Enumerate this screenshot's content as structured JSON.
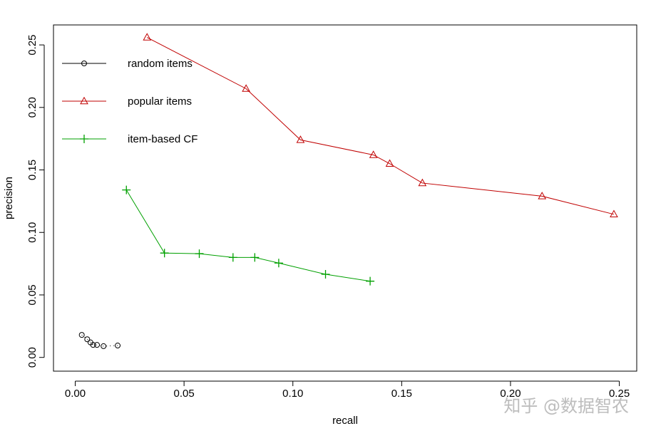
{
  "chart_data": {
    "type": "line",
    "title": "",
    "xlabel": "recall",
    "ylabel": "precision",
    "xlim": [
      -0.01,
      0.258
    ],
    "ylim": [
      -0.011,
      0.266
    ],
    "x_ticks": [
      0.0,
      0.05,
      0.1,
      0.15,
      0.2,
      0.25
    ],
    "x_tick_labels": [
      "0.00",
      "0.05",
      "0.10",
      "0.15",
      "0.20",
      "0.25"
    ],
    "y_ticks": [
      0.0,
      0.05,
      0.1,
      0.15,
      0.2,
      0.25
    ],
    "y_tick_labels": [
      "0.00",
      "0.05",
      "0.10",
      "0.15",
      "0.20",
      "0.25"
    ],
    "grid": false,
    "legend_position": "top-left",
    "series": [
      {
        "name": "random items",
        "color": "#000000",
        "marker": "circle",
        "line": "dotted",
        "x": [
          0.003,
          0.0055,
          0.007,
          0.0082,
          0.01,
          0.013,
          0.0195
        ],
        "y": [
          0.018,
          0.0145,
          0.012,
          0.01,
          0.01,
          0.009,
          0.0095
        ]
      },
      {
        "name": "popular items",
        "color": "#c00000",
        "marker": "triangle",
        "line": "solid",
        "x": [
          0.033,
          0.0785,
          0.1035,
          0.137,
          0.1445,
          0.1595,
          0.2145,
          0.2475
        ],
        "y": [
          0.256,
          0.215,
          0.174,
          0.162,
          0.155,
          0.1395,
          0.129,
          0.1145
        ]
      },
      {
        "name": "item-based CF",
        "color": "#00a000",
        "marker": "plus",
        "line": "solid",
        "x": [
          0.0235,
          0.041,
          0.057,
          0.0725,
          0.0825,
          0.0935,
          0.115,
          0.1355
        ],
        "y": [
          0.134,
          0.0835,
          0.083,
          0.08,
          0.08,
          0.0755,
          0.0665,
          0.061
        ]
      }
    ]
  },
  "watermark": "知乎 @数据智农"
}
